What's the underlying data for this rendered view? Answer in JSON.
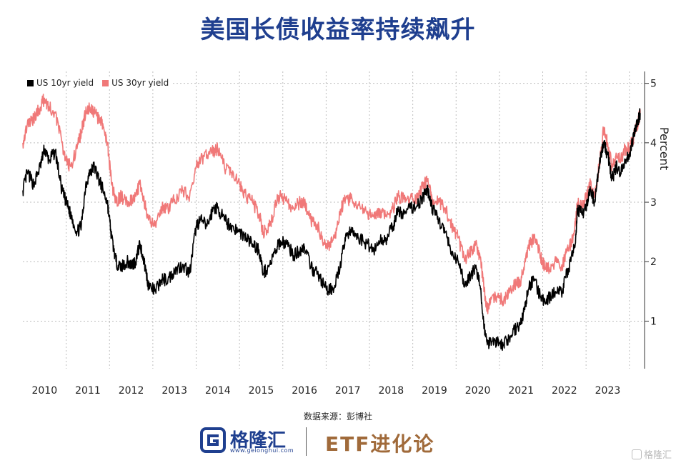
{
  "title": "美国长债收益率持续飙升",
  "source": "数据来源：彭博社",
  "footer": {
    "brand": "格隆汇",
    "brand_url": "www.gelonghui.com",
    "etf": "ETF进化论",
    "watermark": "格隆汇"
  },
  "chart_data": {
    "type": "line",
    "ylabel": "Percent",
    "ylim": [
      0.2,
      5.2
    ],
    "xlim": [
      2009.5,
      2023.85
    ],
    "yticks": [
      1,
      2,
      3,
      4,
      5
    ],
    "xticks": [
      2010,
      2011,
      2012,
      2013,
      2014,
      2015,
      2016,
      2017,
      2018,
      2019,
      2020,
      2021,
      2022,
      2023
    ],
    "grid": true,
    "legend_position": "top-left",
    "series": [
      {
        "name": "US 10yr yield",
        "color": "#000000",
        "x": [
          2009.5,
          2009.6,
          2009.75,
          2009.9,
          2010.0,
          2010.1,
          2010.25,
          2010.4,
          2010.5,
          2010.6,
          2010.75,
          2010.85,
          2010.95,
          2011.05,
          2011.15,
          2011.25,
          2011.35,
          2011.45,
          2011.55,
          2011.65,
          2011.75,
          2011.9,
          2012.0,
          2012.1,
          2012.2,
          2012.3,
          2012.4,
          2012.55,
          2012.7,
          2012.85,
          2013.0,
          2013.2,
          2013.35,
          2013.5,
          2013.6,
          2013.75,
          2013.9,
          2014.0,
          2014.15,
          2014.3,
          2014.5,
          2014.65,
          2014.8,
          2014.95,
          2015.05,
          2015.2,
          2015.35,
          2015.45,
          2015.6,
          2015.75,
          2015.9,
          2016.0,
          2016.15,
          2016.3,
          2016.45,
          2016.55,
          2016.7,
          2016.85,
          2016.95,
          2017.1,
          2017.25,
          2017.45,
          2017.6,
          2017.75,
          2017.9,
          2018.05,
          2018.15,
          2018.3,
          2018.45,
          2018.6,
          2018.75,
          2018.85,
          2018.95,
          2019.1,
          2019.25,
          2019.4,
          2019.55,
          2019.7,
          2019.85,
          2019.95,
          2020.05,
          2020.15,
          2020.22,
          2020.3,
          2020.45,
          2020.6,
          2020.75,
          2020.9,
          2021.0,
          2021.1,
          2021.2,
          2021.3,
          2021.45,
          2021.55,
          2021.65,
          2021.8,
          2021.95,
          2022.05,
          2022.15,
          2022.25,
          2022.3,
          2022.4,
          2022.5,
          2022.6,
          2022.7,
          2022.8,
          2022.9,
          2023.0,
          2023.1,
          2023.2,
          2023.3,
          2023.4,
          2023.5,
          2023.6,
          2023.7,
          2023.75
        ],
        "y": [
          3.2,
          3.5,
          3.3,
          3.6,
          3.9,
          3.7,
          3.85,
          3.2,
          3.0,
          2.8,
          2.5,
          2.6,
          3.3,
          3.5,
          3.6,
          3.4,
          3.2,
          3.0,
          2.4,
          2.0,
          1.9,
          2.0,
          1.95,
          2.0,
          2.3,
          2.0,
          1.6,
          1.5,
          1.7,
          1.7,
          1.85,
          1.95,
          1.8,
          2.6,
          2.7,
          2.6,
          2.9,
          2.9,
          2.7,
          2.6,
          2.5,
          2.4,
          2.3,
          2.2,
          1.8,
          1.95,
          2.2,
          2.35,
          2.3,
          2.1,
          2.2,
          2.25,
          1.9,
          1.8,
          1.6,
          1.5,
          1.6,
          2.0,
          2.45,
          2.5,
          2.4,
          2.3,
          2.2,
          2.35,
          2.4,
          2.6,
          2.85,
          2.8,
          2.9,
          2.95,
          3.1,
          3.2,
          2.9,
          2.7,
          2.5,
          2.1,
          2.0,
          1.6,
          1.8,
          1.9,
          1.6,
          0.9,
          0.6,
          0.7,
          0.65,
          0.6,
          0.75,
          0.9,
          0.95,
          1.3,
          1.6,
          1.7,
          1.4,
          1.3,
          1.4,
          1.5,
          1.5,
          1.8,
          2.0,
          2.3,
          2.9,
          2.8,
          2.9,
          3.2,
          3.0,
          3.6,
          4.0,
          3.8,
          3.4,
          3.6,
          3.5,
          3.7,
          3.8,
          4.1,
          4.4,
          4.5
        ]
      },
      {
        "name": "US 30yr yield",
        "color": "#f07878",
        "x": [
          2009.5,
          2009.6,
          2009.75,
          2009.9,
          2010.0,
          2010.1,
          2010.25,
          2010.4,
          2010.5,
          2010.6,
          2010.75,
          2010.85,
          2010.95,
          2011.05,
          2011.15,
          2011.25,
          2011.35,
          2011.45,
          2011.55,
          2011.65,
          2011.75,
          2011.9,
          2012.0,
          2012.1,
          2012.2,
          2012.3,
          2012.4,
          2012.55,
          2012.7,
          2012.85,
          2013.0,
          2013.2,
          2013.35,
          2013.5,
          2013.6,
          2013.75,
          2013.9,
          2014.0,
          2014.15,
          2014.3,
          2014.5,
          2014.65,
          2014.8,
          2014.95,
          2015.05,
          2015.2,
          2015.35,
          2015.45,
          2015.6,
          2015.75,
          2015.9,
          2016.0,
          2016.15,
          2016.3,
          2016.45,
          2016.55,
          2016.7,
          2016.85,
          2016.95,
          2017.1,
          2017.25,
          2017.45,
          2017.6,
          2017.75,
          2017.9,
          2018.05,
          2018.15,
          2018.3,
          2018.45,
          2018.6,
          2018.75,
          2018.85,
          2018.95,
          2019.1,
          2019.25,
          2019.4,
          2019.55,
          2019.7,
          2019.85,
          2019.95,
          2020.05,
          2020.15,
          2020.22,
          2020.3,
          2020.45,
          2020.6,
          2020.75,
          2020.9,
          2021.0,
          2021.1,
          2021.2,
          2021.3,
          2021.45,
          2021.55,
          2021.65,
          2021.8,
          2021.95,
          2022.05,
          2022.15,
          2022.25,
          2022.3,
          2022.4,
          2022.5,
          2022.6,
          2022.7,
          2022.8,
          2022.9,
          2023.0,
          2023.1,
          2023.2,
          2023.3,
          2023.4,
          2023.5,
          2023.6,
          2023.7,
          2023.75
        ],
        "y": [
          4.0,
          4.3,
          4.4,
          4.6,
          4.75,
          4.6,
          4.5,
          4.0,
          3.7,
          3.6,
          3.9,
          4.2,
          4.5,
          4.6,
          4.5,
          4.4,
          4.3,
          4.0,
          3.3,
          3.0,
          3.1,
          3.0,
          3.05,
          3.1,
          3.3,
          3.0,
          2.7,
          2.6,
          2.9,
          2.9,
          3.05,
          3.2,
          3.1,
          3.6,
          3.7,
          3.8,
          3.85,
          3.9,
          3.6,
          3.5,
          3.3,
          3.1,
          3.0,
          2.8,
          2.5,
          2.6,
          3.0,
          3.1,
          3.0,
          2.9,
          3.0,
          3.0,
          2.7,
          2.6,
          2.3,
          2.25,
          2.4,
          2.9,
          3.05,
          3.05,
          2.95,
          2.8,
          2.75,
          2.85,
          2.75,
          2.9,
          3.1,
          3.05,
          3.1,
          3.05,
          3.3,
          3.4,
          3.05,
          3.0,
          2.9,
          2.6,
          2.4,
          2.0,
          2.2,
          2.3,
          2.1,
          1.5,
          1.2,
          1.4,
          1.4,
          1.35,
          1.55,
          1.65,
          1.7,
          2.0,
          2.3,
          2.4,
          2.1,
          1.9,
          1.9,
          2.0,
          1.9,
          2.2,
          2.3,
          2.6,
          3.0,
          2.9,
          3.1,
          3.3,
          3.1,
          3.6,
          4.2,
          4.0,
          3.6,
          3.8,
          3.7,
          3.9,
          3.9,
          4.1,
          4.35,
          4.5
        ]
      }
    ]
  }
}
